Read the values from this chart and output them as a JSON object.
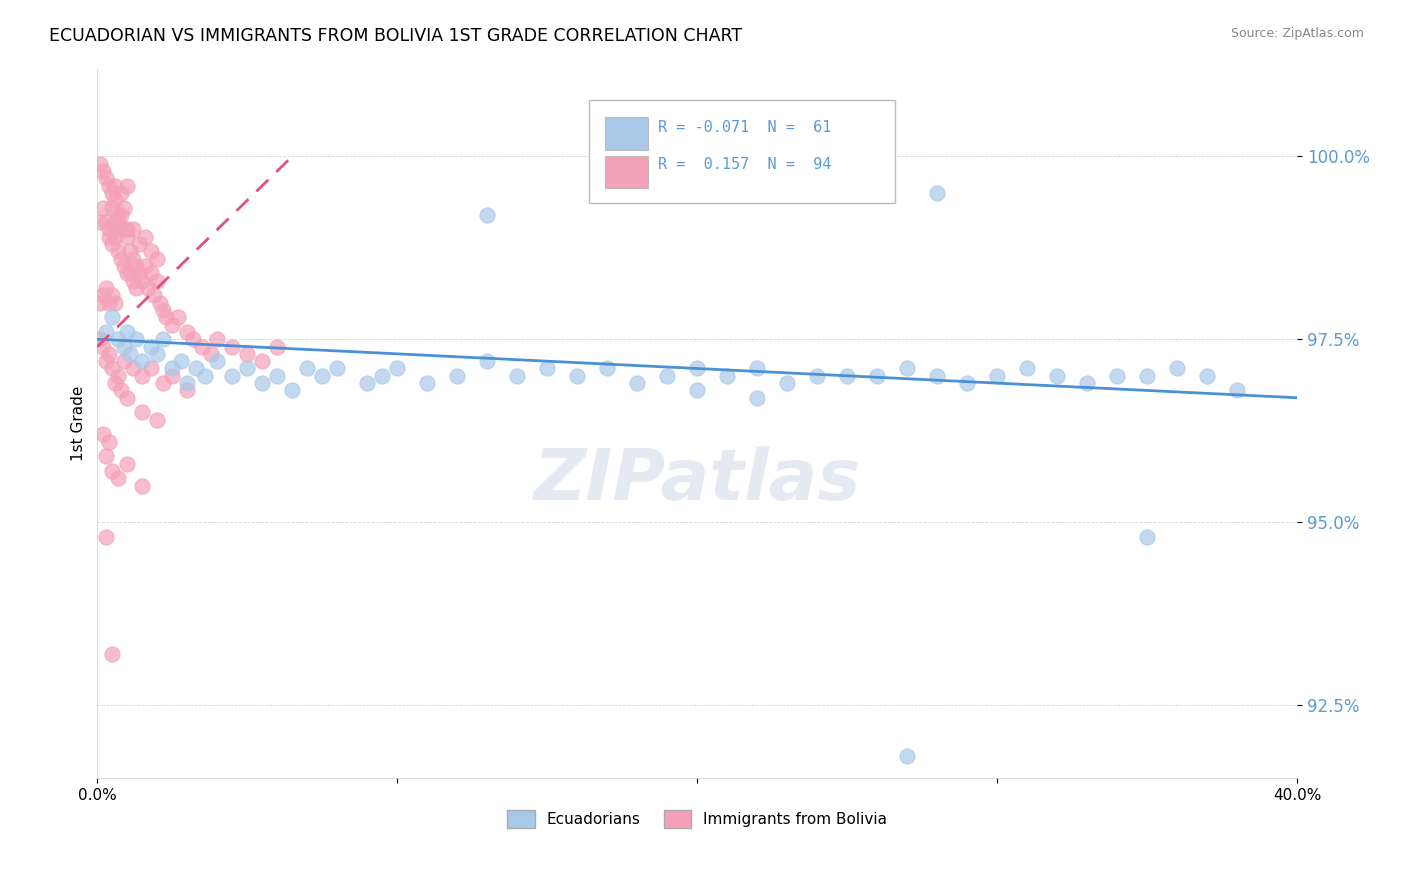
{
  "title": "ECUADORIAN VS IMMIGRANTS FROM BOLIVIA 1ST GRADE CORRELATION CHART",
  "source": "Source: ZipAtlas.com",
  "ylabel": "1st Grade",
  "yticks": [
    92.5,
    95.0,
    97.5,
    100.0
  ],
  "ytick_labels": [
    "92.5%",
    "95.0%",
    "97.5%",
    "100.0%"
  ],
  "xlim": [
    0.0,
    40.0
  ],
  "ylim": [
    91.5,
    101.2
  ],
  "watermark": "ZIPatlas",
  "blue_color": "#a8c8e8",
  "pink_color": "#f4a0b8",
  "blue_line_color": "#4a90d4",
  "pink_line_color": "#e05080",
  "tick_color": "#5b9bd5",
  "blue_scatter": [
    [
      0.3,
      97.6
    ],
    [
      0.5,
      97.8
    ],
    [
      0.7,
      97.5
    ],
    [
      0.9,
      97.4
    ],
    [
      1.0,
      97.6
    ],
    [
      1.1,
      97.3
    ],
    [
      1.3,
      97.5
    ],
    [
      1.5,
      97.2
    ],
    [
      1.8,
      97.4
    ],
    [
      2.0,
      97.3
    ],
    [
      2.2,
      97.5
    ],
    [
      2.5,
      97.1
    ],
    [
      2.8,
      97.2
    ],
    [
      3.0,
      96.9
    ],
    [
      3.3,
      97.1
    ],
    [
      3.6,
      97.0
    ],
    [
      4.0,
      97.2
    ],
    [
      4.5,
      97.0
    ],
    [
      5.0,
      97.1
    ],
    [
      5.5,
      96.9
    ],
    [
      6.0,
      97.0
    ],
    [
      6.5,
      96.8
    ],
    [
      7.0,
      97.1
    ],
    [
      7.5,
      97.0
    ],
    [
      8.0,
      97.1
    ],
    [
      9.0,
      96.9
    ],
    [
      9.5,
      97.0
    ],
    [
      10.0,
      97.1
    ],
    [
      11.0,
      96.9
    ],
    [
      12.0,
      97.0
    ],
    [
      13.0,
      97.2
    ],
    [
      14.0,
      97.0
    ],
    [
      15.0,
      97.1
    ],
    [
      16.0,
      97.0
    ],
    [
      17.0,
      97.1
    ],
    [
      18.0,
      96.9
    ],
    [
      19.0,
      97.0
    ],
    [
      20.0,
      97.1
    ],
    [
      21.0,
      97.0
    ],
    [
      22.0,
      97.1
    ],
    [
      23.0,
      96.9
    ],
    [
      24.0,
      97.0
    ],
    [
      25.0,
      97.0
    ],
    [
      26.0,
      97.0
    ],
    [
      27.0,
      97.1
    ],
    [
      28.0,
      97.0
    ],
    [
      29.0,
      96.9
    ],
    [
      30.0,
      97.0
    ],
    [
      31.0,
      97.1
    ],
    [
      32.0,
      97.0
    ],
    [
      33.0,
      96.9
    ],
    [
      34.0,
      97.0
    ],
    [
      35.0,
      97.0
    ],
    [
      36.0,
      97.1
    ],
    [
      37.0,
      97.0
    ],
    [
      38.0,
      96.8
    ],
    [
      20.0,
      96.8
    ],
    [
      22.0,
      96.7
    ],
    [
      28.0,
      99.5
    ],
    [
      13.0,
      99.2
    ],
    [
      35.0,
      94.8
    ],
    [
      27.0,
      91.8
    ]
  ],
  "pink_scatter": [
    [
      0.1,
      99.9
    ],
    [
      0.2,
      99.8
    ],
    [
      0.3,
      99.7
    ],
    [
      0.4,
      99.6
    ],
    [
      0.5,
      99.5
    ],
    [
      0.5,
      99.3
    ],
    [
      0.6,
      99.6
    ],
    [
      0.6,
      99.4
    ],
    [
      0.7,
      99.2
    ],
    [
      0.7,
      99.0
    ],
    [
      0.8,
      99.5
    ],
    [
      0.8,
      99.2
    ],
    [
      0.9,
      99.3
    ],
    [
      0.9,
      99.0
    ],
    [
      1.0,
      99.6
    ],
    [
      1.0,
      99.0
    ],
    [
      0.1,
      99.1
    ],
    [
      0.2,
      99.3
    ],
    [
      0.3,
      99.1
    ],
    [
      0.4,
      98.9
    ],
    [
      0.5,
      98.8
    ],
    [
      0.6,
      98.9
    ],
    [
      0.7,
      98.7
    ],
    [
      0.8,
      98.6
    ],
    [
      0.9,
      98.5
    ],
    [
      1.0,
      98.4
    ],
    [
      1.1,
      98.7
    ],
    [
      1.1,
      98.4
    ],
    [
      1.2,
      98.6
    ],
    [
      1.2,
      98.3
    ],
    [
      1.3,
      98.5
    ],
    [
      1.3,
      98.2
    ],
    [
      1.4,
      98.4
    ],
    [
      1.5,
      98.3
    ],
    [
      1.6,
      98.5
    ],
    [
      1.7,
      98.2
    ],
    [
      1.8,
      98.4
    ],
    [
      1.9,
      98.1
    ],
    [
      2.0,
      98.3
    ],
    [
      2.1,
      98.0
    ],
    [
      2.2,
      97.9
    ],
    [
      2.3,
      97.8
    ],
    [
      2.5,
      97.7
    ],
    [
      2.7,
      97.8
    ],
    [
      3.0,
      97.6
    ],
    [
      3.2,
      97.5
    ],
    [
      3.5,
      97.4
    ],
    [
      3.8,
      97.3
    ],
    [
      4.0,
      97.5
    ],
    [
      4.5,
      97.4
    ],
    [
      5.0,
      97.3
    ],
    [
      5.5,
      97.2
    ],
    [
      6.0,
      97.4
    ],
    [
      0.3,
      97.2
    ],
    [
      0.5,
      97.1
    ],
    [
      0.7,
      97.0
    ],
    [
      0.9,
      97.2
    ],
    [
      1.2,
      97.1
    ],
    [
      1.5,
      97.0
    ],
    [
      1.8,
      97.1
    ],
    [
      2.2,
      96.9
    ],
    [
      0.1,
      97.5
    ],
    [
      0.2,
      97.4
    ],
    [
      0.4,
      97.3
    ],
    [
      0.6,
      96.9
    ],
    [
      0.8,
      96.8
    ],
    [
      1.0,
      96.7
    ],
    [
      2.5,
      97.0
    ],
    [
      3.0,
      96.8
    ],
    [
      1.5,
      96.5
    ],
    [
      2.0,
      96.4
    ],
    [
      0.3,
      95.9
    ],
    [
      0.5,
      95.7
    ],
    [
      0.7,
      95.6
    ],
    [
      1.0,
      95.8
    ],
    [
      1.5,
      95.5
    ],
    [
      0.2,
      96.2
    ],
    [
      0.4,
      96.1
    ],
    [
      0.3,
      94.8
    ],
    [
      0.5,
      93.2
    ],
    [
      0.1,
      98.0
    ],
    [
      0.2,
      98.1
    ],
    [
      0.3,
      98.2
    ],
    [
      0.4,
      98.0
    ],
    [
      0.5,
      98.1
    ],
    [
      0.6,
      98.0
    ],
    [
      0.4,
      99.0
    ],
    [
      0.6,
      99.1
    ],
    [
      0.8,
      99.0
    ],
    [
      1.0,
      98.9
    ],
    [
      1.2,
      99.0
    ],
    [
      1.4,
      98.8
    ],
    [
      1.6,
      98.9
    ],
    [
      1.8,
      98.7
    ],
    [
      2.0,
      98.6
    ]
  ],
  "blue_line_x": [
    0.0,
    40.0
  ],
  "blue_line_y": [
    97.5,
    96.7
  ],
  "pink_line_x": [
    0.0,
    6.5
  ],
  "pink_line_y": [
    97.4,
    100.0
  ]
}
